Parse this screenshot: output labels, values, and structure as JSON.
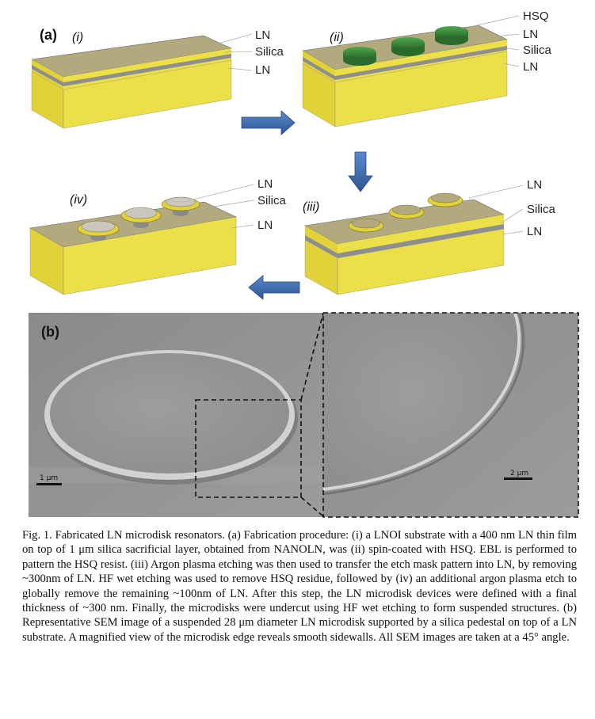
{
  "panel_a": {
    "label": "(a)",
    "steps": {
      "i": {
        "label": "(i)",
        "layers": [
          "LN",
          "Silica",
          "LN"
        ]
      },
      "ii": {
        "label": "(ii)",
        "layers": [
          "HSQ",
          "LN",
          "Silica",
          "LN"
        ]
      },
      "iii": {
        "label": "(iii)",
        "layers": [
          "LN",
          "Silica",
          "LN"
        ]
      },
      "iv": {
        "label": "(iv)",
        "layers": [
          "LN",
          "Silica",
          "LN"
        ]
      }
    }
  },
  "panel_b": {
    "label": "(b)",
    "scale_left": "1 μm",
    "scale_right": "2 μm"
  },
  "colors": {
    "ln_side": "#e6d73a",
    "ln_top": "#b2a97e",
    "silica": "#8e8e8e",
    "hsq": "#3a8a3a",
    "arrow": "#3f6fb0"
  },
  "caption": "Fig. 1. Fabricated LN microdisk resonators. (a) Fabrication procedure: (i) a LNOI substrate with a 400 nm LN thin film on top of 1 μm silica sacrificial layer, obtained from NANOLN, was (ii) spin-coated with HSQ. EBL is performed to pattern the HSQ resist. (iii) Argon plasma etching was then used to transfer the etch mask pattern into LN, by removing ~300nm of LN. HF wet etching was used to remove HSQ residue, followed by (iv) an additional argon plasma etch to globally remove the remaining ~100nm of LN. After this step, the LN microdisk devices were defined with a final thickness of ~300 nm. Finally, the microdisks were undercut using HF wet etching to form suspended structures. (b) Representative SEM image of a suspended 28 μm diameter LN microdisk supported by a silica pedestal on top of a LN substrate. A magnified view of the microdisk edge reveals smooth sidewalls. All SEM images are taken at a 45° angle."
}
